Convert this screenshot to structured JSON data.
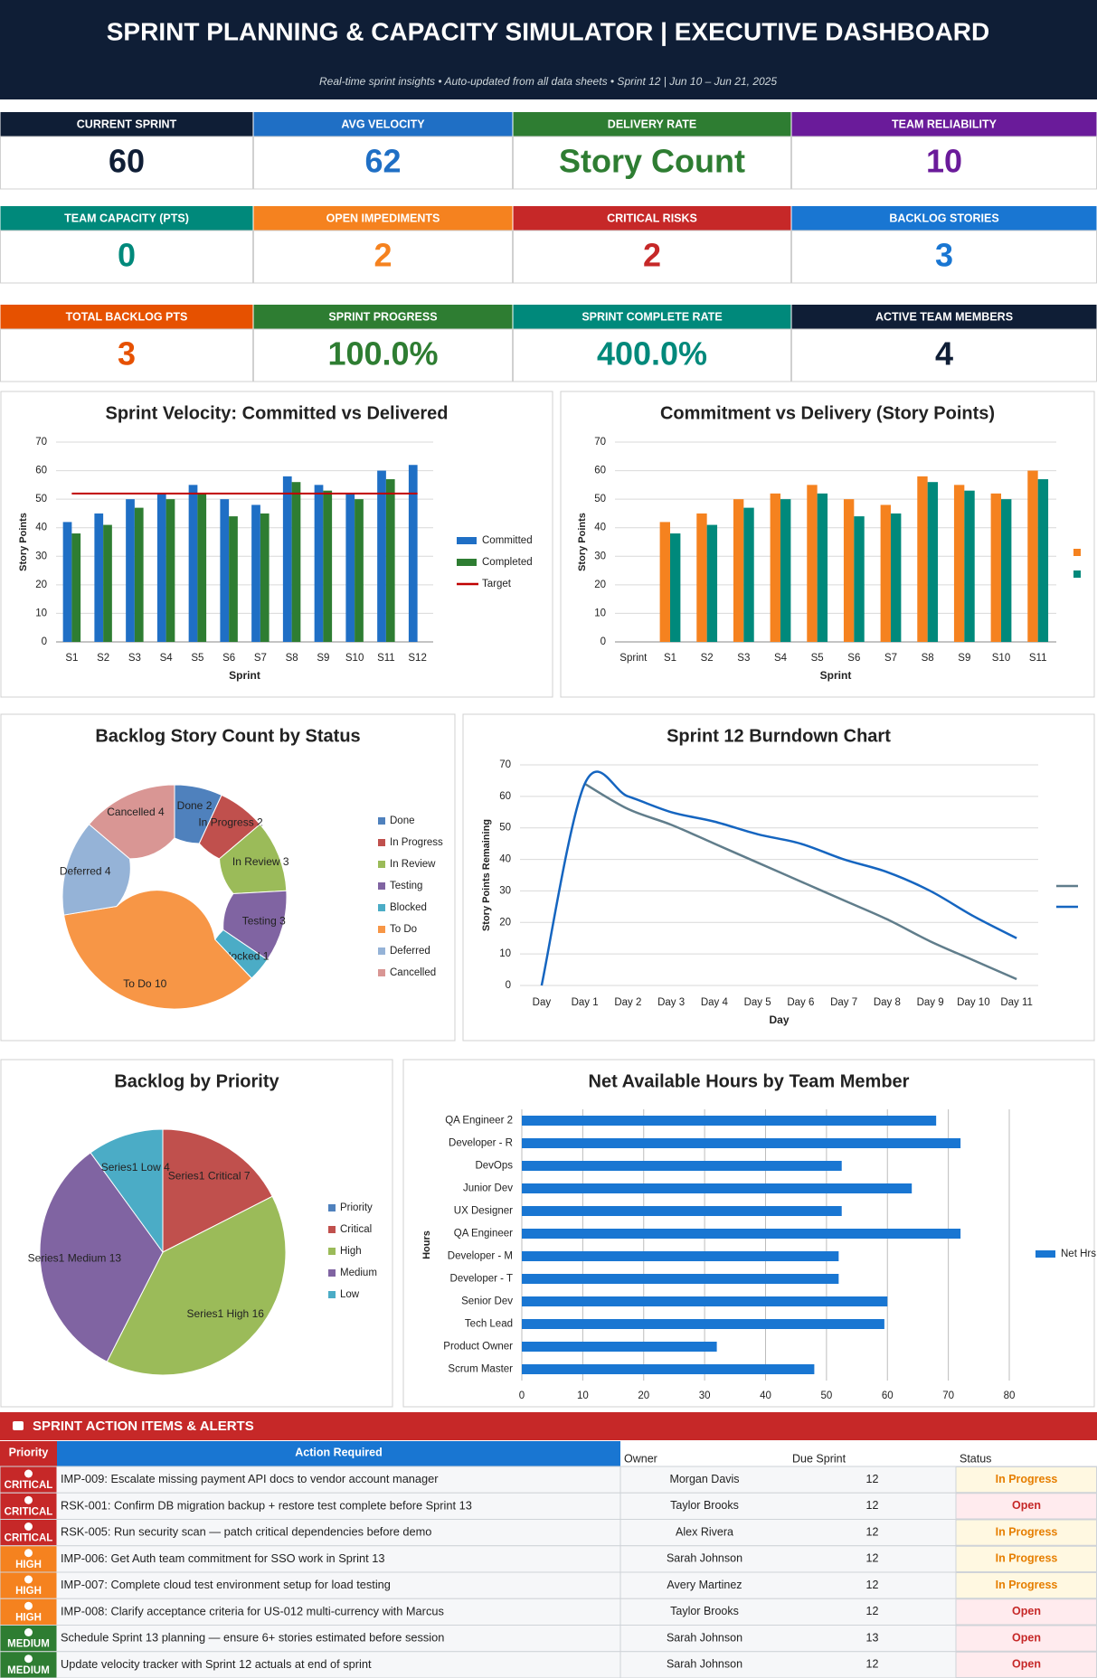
{
  "header": {
    "title": "SPRINT PLANNING & CAPACITY SIMULATOR  |  EXECUTIVE DASHBOARD",
    "subtitle": "Real-time sprint insights  •  Auto-updated from all data sheets  •  Sprint 12  |  Jun 10 – Jun 21, 2025"
  },
  "kpis": [
    {
      "label": "CURRENT SPRINT",
      "value": 60,
      "color": "#0f1e36"
    },
    {
      "label": "AVG VELOCITY",
      "value": 62,
      "color": "#1f6fc5"
    },
    {
      "label": "DELIVERY RATE",
      "value": "Story Count",
      "color": "#2e7d32"
    },
    {
      "label": "TEAM RELIABILITY",
      "value": 10,
      "color": "#6a1b9a"
    },
    {
      "label": "TEAM CAPACITY (PTS)",
      "value": 0,
      "color": "#00897b"
    },
    {
      "label": "OPEN IMPEDIMENTS",
      "value": 2,
      "color": "#f5821f"
    },
    {
      "label": "CRITICAL RISKS",
      "value": 2,
      "color": "#c62828"
    },
    {
      "label": "BACKLOG STORIES",
      "value": 3,
      "color": "#1976d2"
    },
    {
      "label": "TOTAL BACKLOG PTS",
      "value": 3,
      "color": "#e65100"
    },
    {
      "label": "SPRINT PROGRESS",
      "value": "100.0%",
      "color": "#2e7d32"
    },
    {
      "label": "SPRINT COMPLETE RATE",
      "value": "400.0%",
      "color": "#00897b"
    },
    {
      "label": "ACTIVE TEAM MEMBERS",
      "value": 4,
      "color": "#0f1e36"
    }
  ],
  "chart_data": [
    {
      "type": "bar",
      "title": "Sprint Velocity: Committed vs Delivered",
      "x_label": "Sprint",
      "y_label": "Story Points",
      "categories": [
        "S1",
        "S2",
        "S3",
        "S4",
        "S5",
        "S6",
        "S7",
        "S8",
        "S9",
        "S10",
        "S11",
        "S12"
      ],
      "series": [
        {
          "name": "Committed",
          "color": "#1f6fc5",
          "values": [
            42,
            45,
            50,
            52,
            55,
            50,
            48,
            58,
            55,
            52,
            60,
            62
          ]
        },
        {
          "name": "Completed",
          "color": "#2e7d32",
          "values": [
            38,
            41,
            47,
            50,
            52,
            44,
            45,
            56,
            53,
            50,
            57,
            null
          ]
        },
        {
          "name": "Target",
          "type": "line",
          "color": "#c00000",
          "values": [
            52,
            52,
            52,
            52,
            52,
            52,
            52,
            52,
            52,
            52,
            52,
            52
          ]
        }
      ],
      "ylim": [
        0,
        70
      ],
      "yticks": [
        0,
        10,
        20,
        30,
        40,
        50,
        60,
        70
      ],
      "grid": true,
      "legend": "right"
    },
    {
      "type": "bar",
      "title": "Commitment vs Delivery (Story Points)",
      "x_label": "Sprint",
      "y_label": "Story Points",
      "categories": [
        "Sprint",
        "S1",
        "S2",
        "S3",
        "S4",
        "S5",
        "S6",
        "S7",
        "S8",
        "S9",
        "S10",
        "S11"
      ],
      "series": [
        {
          "color": "#f5821f",
          "values": [
            null,
            42,
            45,
            50,
            52,
            55,
            50,
            48,
            58,
            55,
            52,
            60
          ]
        },
        {
          "color": "#00897b",
          "values": [
            null,
            38,
            41,
            47,
            50,
            52,
            44,
            45,
            56,
            53,
            50,
            57
          ]
        }
      ],
      "ylim": [
        0,
        70
      ],
      "yticks": [
        0,
        10,
        20,
        30,
        40,
        50,
        60,
        70
      ],
      "grid": true,
      "legend": "right"
    },
    {
      "type": "donut",
      "title": "Backlog Story Count by Status",
      "categories": [
        "Done",
        "In Progress",
        "In Review",
        "Testing",
        "Blocked",
        "To Do",
        "Deferred",
        "Cancelled"
      ],
      "values": [
        2,
        2,
        3,
        3,
        1,
        10,
        4,
        4
      ],
      "colors": [
        "#4f81bd",
        "#c0504d",
        "#9bbb59",
        "#8064a2",
        "#4bacc6",
        "#f79646",
        "#95b3d7",
        "#d99694"
      ],
      "legend": "right"
    },
    {
      "type": "line",
      "title": "Sprint 12 Burndown Chart",
      "x_label": "Day",
      "y_label": "Story Points Remaining",
      "categories": [
        "Day",
        "Day 1",
        "Day 2",
        "Day 3",
        "Day 4",
        "Day 5",
        "Day 6",
        "Day 7",
        "Day 8",
        "Day 9",
        "Day 10",
        "Day 11"
      ],
      "series": [
        {
          "color": "#607d8b",
          "values": [
            null,
            64,
            56,
            51,
            45,
            39,
            33,
            27,
            21,
            14,
            8,
            2
          ]
        },
        {
          "color": "#1565c0",
          "values": [
            0,
            64,
            60,
            55,
            52,
            48,
            45,
            40,
            36,
            30,
            22,
            15
          ]
        }
      ],
      "ylim": [
        0,
        70
      ],
      "yticks": [
        0,
        10,
        20,
        30,
        40,
        50,
        60,
        70
      ],
      "grid": true,
      "smooth": true,
      "legend": "right"
    },
    {
      "type": "pie",
      "title": "Backlog by Priority",
      "series_name": "Series1",
      "categories": [
        "Priority",
        "Critical",
        "High",
        "Medium",
        "Low"
      ],
      "values": [
        0,
        7,
        16,
        13,
        4
      ],
      "colors": [
        "#4f81bd",
        "#c0504d",
        "#9bbb59",
        "#8064a2",
        "#4bacc6"
      ],
      "legend": "right"
    },
    {
      "type": "bar",
      "orientation": "horizontal",
      "title": "Net Available Hours by Team Member",
      "y_label": "Hours",
      "categories": [
        "QA Engineer 2",
        "Developer - R",
        "DevOps",
        "Junior Dev",
        "UX Designer",
        "QA Engineer",
        "Developer - M",
        "Developer - T",
        "Senior Dev",
        "Tech Lead",
        "Product Owner",
        "Scrum Master"
      ],
      "series": [
        {
          "name": "Net Hrs",
          "color": "#1976d2",
          "values": [
            68,
            72,
            52.5,
            64,
            52.5,
            72,
            52,
            52,
            60,
            59.5,
            32,
            48
          ]
        }
      ],
      "xlim": [
        0,
        80
      ],
      "xticks": [
        0,
        10,
        20,
        30,
        40,
        50,
        60,
        70,
        80
      ],
      "grid": true,
      "legend": "right"
    }
  ],
  "table": {
    "title": "SPRINT ACTION ITEMS & ALERTS",
    "columns": [
      "Priority",
      "Action Required",
      "Owner",
      "Due Sprint",
      "Status"
    ],
    "rows": [
      {
        "priority": "CRITICAL",
        "priority_color": "#c62828",
        "action": "IMP-009: Escalate missing payment API docs to vendor account manager",
        "owner": "Morgan Davis",
        "due_sprint": 12,
        "status": "In Progress",
        "status_color": "#e67e00",
        "status_bg": "#fff8e1"
      },
      {
        "priority": "CRITICAL",
        "priority_color": "#c62828",
        "action": "RSK-001: Confirm DB migration backup + restore test complete before Sprint 13",
        "owner": "Taylor Brooks",
        "due_sprint": 12,
        "status": "Open",
        "status_color": "#c62828",
        "status_bg": "#ffebee"
      },
      {
        "priority": "CRITICAL",
        "priority_color": "#c62828",
        "action": "RSK-005: Run security scan — patch critical dependencies before demo",
        "owner": "Alex Rivera",
        "due_sprint": 12,
        "status": "In Progress",
        "status_color": "#e67e00",
        "status_bg": "#fff8e1"
      },
      {
        "priority": "HIGH",
        "priority_color": "#f5821f",
        "action": "IMP-006: Get Auth team commitment for SSO work in Sprint 13",
        "owner": "Sarah Johnson",
        "due_sprint": 12,
        "status": "In Progress",
        "status_color": "#e67e00",
        "status_bg": "#fff8e1"
      },
      {
        "priority": "HIGH",
        "priority_color": "#f5821f",
        "action": "IMP-007: Complete cloud test environment setup for load testing",
        "owner": "Avery Martinez",
        "due_sprint": 12,
        "status": "In Progress",
        "status_color": "#e67e00",
        "status_bg": "#fff8e1"
      },
      {
        "priority": "HIGH",
        "priority_color": "#f5821f",
        "action": "IMP-008: Clarify acceptance criteria for US-012 multi-currency with Marcus",
        "owner": "Taylor Brooks",
        "due_sprint": 12,
        "status": "Open",
        "status_color": "#c62828",
        "status_bg": "#ffebee"
      },
      {
        "priority": "MEDIUM",
        "priority_color": "#2e7d32",
        "action": "Schedule Sprint 13 planning — ensure 6+ stories estimated before session",
        "owner": "Sarah Johnson",
        "due_sprint": 13,
        "status": "Open",
        "status_color": "#c62828",
        "status_bg": "#ffebee"
      },
      {
        "priority": "MEDIUM",
        "priority_color": "#2e7d32",
        "action": "Update velocity tracker with Sprint 12 actuals at end of sprint",
        "owner": "Sarah Johnson",
        "due_sprint": 12,
        "status": "Open",
        "status_color": "#c62828",
        "status_bg": "#ffebee"
      }
    ]
  }
}
